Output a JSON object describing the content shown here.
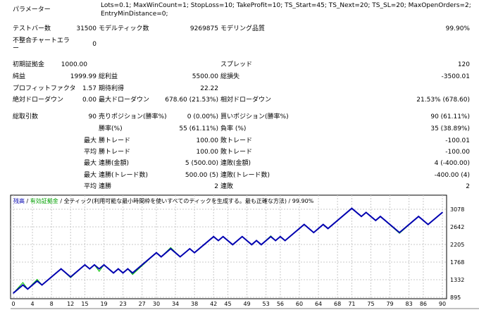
{
  "report": {
    "params_label": "パラメーター",
    "params_line1": "Lots=0.1; MaxWinCount=1; StopLoss=10; TakeProfit=10; TS_Start=45; TS_Next=20; TS_SL=20; MaxOpenOrders=2;",
    "params_line2": "EntryMinDistance=0;",
    "bars_label": "テストバー数",
    "bars": "31500",
    "ticks_label": "モデルティック数",
    "ticks": "9269875",
    "quality_label": "モデリング品質",
    "quality": "99.90%",
    "mismatch_label_1": "不整合チャートエラ",
    "mismatch_label_2": "ー",
    "mismatch": "0",
    "deposit_label": "初期証拠金",
    "deposit": "1000.00",
    "spread_label": "スプレッド",
    "spread": "120",
    "net_label": "純益",
    "net": "1999.99",
    "gross_profit_label": "総利益",
    "gross_profit": "5500.00",
    "gross_loss_label": "総損失",
    "gross_loss": "-3500.01",
    "pf_label": "プロフィットファクタ",
    "pf": "1.57",
    "expected_label": "期待利得",
    "expected": "22.22",
    "abs_dd_label": "絶対ドローダウン",
    "abs_dd": "0.00",
    "max_dd_label": "最大ドローダウン",
    "max_dd": "678.60 (21.53%)",
    "rel_dd_label": "相対ドローダウン",
    "rel_dd": "21.53% (678.60)",
    "trades_label": "総取引数",
    "trades": "90",
    "short_label": "売りポジション(勝率%)",
    "short": "0 (0.00%)",
    "long_label": "買いポジション(勝率%)",
    "long": "90 (61.11%)",
    "win_rate_label": "勝率(%)",
    "win_rate": "55 (61.11%)",
    "loss_rate_label": "負率 (%)",
    "loss_rate": "35 (38.89%)",
    "max": "最大",
    "avg": "平均",
    "win_trade_label": "勝トレード",
    "loss_trade_label": "敗トレード",
    "max_win": "100.00",
    "max_loss": "-100.01",
    "avg_win": "100.00",
    "avg_loss": "-100.00",
    "consec_win_amt_label": "連勝(金額)",
    "consec_win_amt": "5 (500.00)",
    "consec_loss_amt_label": "連敗(金額)",
    "consec_loss_amt": "4 (-400.00)",
    "consec_win_cnt_label": "連勝(トレード数)",
    "consec_win_cnt": "500.00 (5)",
    "consec_loss_cnt_label": "連敗(トレード数)",
    "consec_loss_cnt": "-400.00 (4)",
    "avg_win_streak_label": "連勝",
    "avg_win_streak": "2",
    "avg_loss_streak_label": "連敗",
    "avg_loss_streak": "2"
  },
  "chart_data": {
    "type": "line",
    "legend": {
      "balance": "残高",
      "equity": "有効証拠金",
      "model": "全ティック(利用可能な最小時間枠を使いすべてのティックを生成する。最も正確な方法)",
      "quality": "99.90%",
      "sep": " / "
    },
    "x_ticks": [
      0,
      4,
      8,
      12,
      15,
      19,
      23,
      27,
      30,
      34,
      38,
      42,
      45,
      49,
      53,
      56,
      60,
      64,
      68,
      71,
      75,
      79,
      83,
      86,
      90
    ],
    "y_ticks": [
      895,
      1332,
      1768,
      2205,
      2642,
      3078
    ],
    "xlim": [
      0,
      90
    ],
    "ylim": [
      895,
      3078
    ],
    "grid": true,
    "colors": {
      "balance": "#0000b0",
      "equity": "#00c000",
      "grid": "#c8c8c8"
    },
    "series": [
      {
        "name": "残高",
        "x": [
          0,
          2,
          3,
          5,
          6,
          10,
          12,
          15,
          16,
          17,
          18,
          19,
          21,
          22,
          23,
          24,
          25,
          30,
          31,
          33,
          35,
          37,
          38,
          42,
          43,
          44,
          46,
          48,
          50,
          51,
          52,
          54,
          55,
          56,
          57,
          61,
          63,
          65,
          66,
          71,
          73,
          74,
          76,
          77,
          81,
          85,
          87,
          90
        ],
        "y": [
          1000,
          1200,
          1100,
          1300,
          1200,
          1600,
          1400,
          1700,
          1600,
          1700,
          1600,
          1700,
          1500,
          1600,
          1500,
          1600,
          1500,
          2000,
          1900,
          2100,
          1900,
          2100,
          2000,
          2400,
          2300,
          2400,
          2200,
          2400,
          2200,
          2300,
          2200,
          2400,
          2300,
          2400,
          2300,
          2700,
          2500,
          2700,
          2600,
          3100,
          2900,
          3000,
          2800,
          2900,
          2500,
          2900,
          2700,
          3000
        ]
      },
      {
        "name": "有効証拠金",
        "x": [
          0,
          2,
          3,
          5,
          6,
          10,
          12,
          15,
          16,
          17,
          18,
          19,
          21,
          22,
          23,
          24,
          25,
          30,
          31,
          33,
          35,
          37,
          38,
          42,
          43,
          44,
          46,
          48,
          50,
          51,
          52,
          54,
          55,
          56,
          57,
          61,
          63,
          65,
          66,
          71,
          73,
          74,
          76,
          77,
          81,
          85,
          87,
          90
        ],
        "y": [
          1000,
          1260,
          1100,
          1340,
          1200,
          1600,
          1380,
          1700,
          1600,
          1700,
          1540,
          1700,
          1500,
          1600,
          1500,
          1600,
          1460,
          2000,
          1900,
          2130,
          1900,
          2100,
          2000,
          2400,
          2300,
          2400,
          2200,
          2400,
          2200,
          2300,
          2200,
          2420,
          2300,
          2400,
          2300,
          2700,
          2500,
          2700,
          2600,
          3100,
          2900,
          3000,
          2800,
          2900,
          2480,
          2900,
          2700,
          3000
        ]
      }
    ]
  }
}
